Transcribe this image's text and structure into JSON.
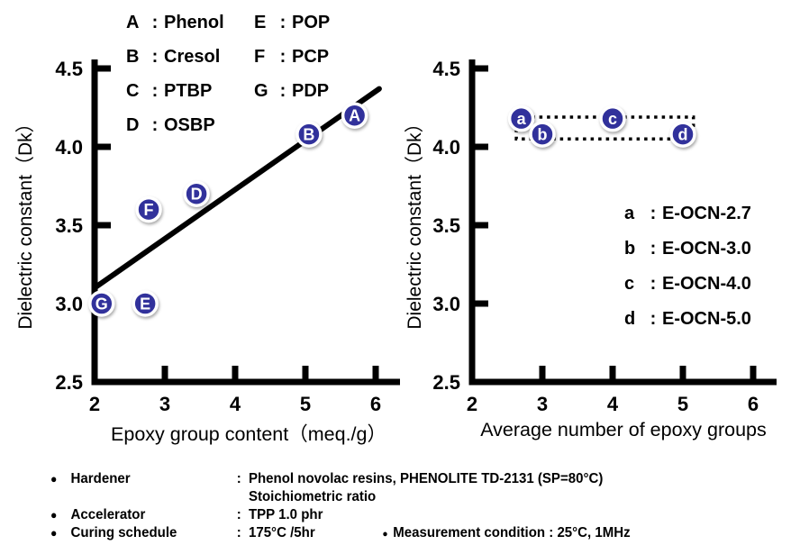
{
  "ui": {
    "colon": ":",
    "bullet": "●",
    "small_bullet": "●"
  },
  "colors": {
    "marker_fill": "#31319b",
    "marker_letter": "#ffffff",
    "axis": "#000000",
    "trend_line": "#000000",
    "dotted_box": "#000000",
    "background": "#ffffff"
  },
  "chart_data": [
    {
      "type": "scatter",
      "title": "",
      "xlabel": "Epoxy group content（meq./g）",
      "ylabel": "Dielectric constant（Dk）",
      "xlim": [
        2,
        6.35
      ],
      "ylim": [
        2.5,
        4.55
      ],
      "xticks": [
        2,
        3,
        4,
        5,
        6
      ],
      "yticks": [
        2.5,
        3.0,
        3.5,
        4.0,
        4.5
      ],
      "grid": false,
      "legend_position": "top-inside-two-columns",
      "legend": [
        {
          "key": "A",
          "name": "Phenol"
        },
        {
          "key": "B",
          "name": "Cresol"
        },
        {
          "key": "C",
          "name": "PTBP"
        },
        {
          "key": "D",
          "name": "OSBP"
        },
        {
          "key": "E",
          "name": "POP"
        },
        {
          "key": "F",
          "name": "PCP"
        },
        {
          "key": "G",
          "name": "PDP"
        }
      ],
      "points": [
        {
          "label": "G",
          "name": "PDP",
          "x": 2.1,
          "y": 3.0
        },
        {
          "label": "E",
          "name": "POP",
          "x": 2.72,
          "y": 3.0
        },
        {
          "label": "F",
          "name": "PCP",
          "x": 2.77,
          "y": 3.6
        },
        {
          "label": "D",
          "name": "OSBP",
          "x": 3.45,
          "y": 3.7
        },
        {
          "label": "B",
          "name": "Cresol",
          "x": 5.05,
          "y": 4.08
        },
        {
          "label": "A",
          "name": "Phenol",
          "x": 5.7,
          "y": 4.2
        }
      ],
      "trend_line": {
        "x1": 2.0,
        "y1": 3.1,
        "x2": 6.05,
        "y2": 4.37
      }
    },
    {
      "type": "scatter",
      "title": "",
      "xlabel": "Average number of epoxy groups",
      "ylabel": "Dielectric constant（Dk）",
      "xlim": [
        2,
        6.35
      ],
      "ylim": [
        2.5,
        4.55
      ],
      "xticks": [
        2,
        3,
        4,
        5,
        6
      ],
      "yticks": [
        2.5,
        3.0,
        3.5,
        4.0,
        4.5
      ],
      "grid": false,
      "legend_position": "right-inside",
      "legend": [
        {
          "key": "a",
          "name": "E-OCN-2.7"
        },
        {
          "key": "b",
          "name": "E-OCN-3.0"
        },
        {
          "key": "c",
          "name": "E-OCN-4.0"
        },
        {
          "key": "d",
          "name": "E-OCN-5.0"
        }
      ],
      "points": [
        {
          "label": "a",
          "name": "E-OCN-2.7",
          "x": 2.7,
          "y": 4.18
        },
        {
          "label": "b",
          "name": "E-OCN-3.0",
          "x": 3.0,
          "y": 4.08
        },
        {
          "label": "c",
          "name": "E-OCN-4.0",
          "x": 4.0,
          "y": 4.18
        },
        {
          "label": "d",
          "name": "E-OCN-5.0",
          "x": 5.0,
          "y": 4.08
        }
      ],
      "dotted_box": {
        "x1": 2.63,
        "y1": 4.05,
        "x2": 5.15,
        "y2": 4.19
      }
    }
  ],
  "footnotes": {
    "rows": [
      {
        "label": "Hardener",
        "value": "Phenol novolac resins, PHENOLITE TD-2131 (SP=80°C)",
        "value2": "Stoichiometric ratio"
      },
      {
        "label": "Accelerator",
        "value": "TPP  1.0 phr"
      },
      {
        "label": "Curing schedule",
        "value": "175°C /5hr",
        "extra": "Measurement condition : 25°C, 1MHz"
      }
    ]
  }
}
